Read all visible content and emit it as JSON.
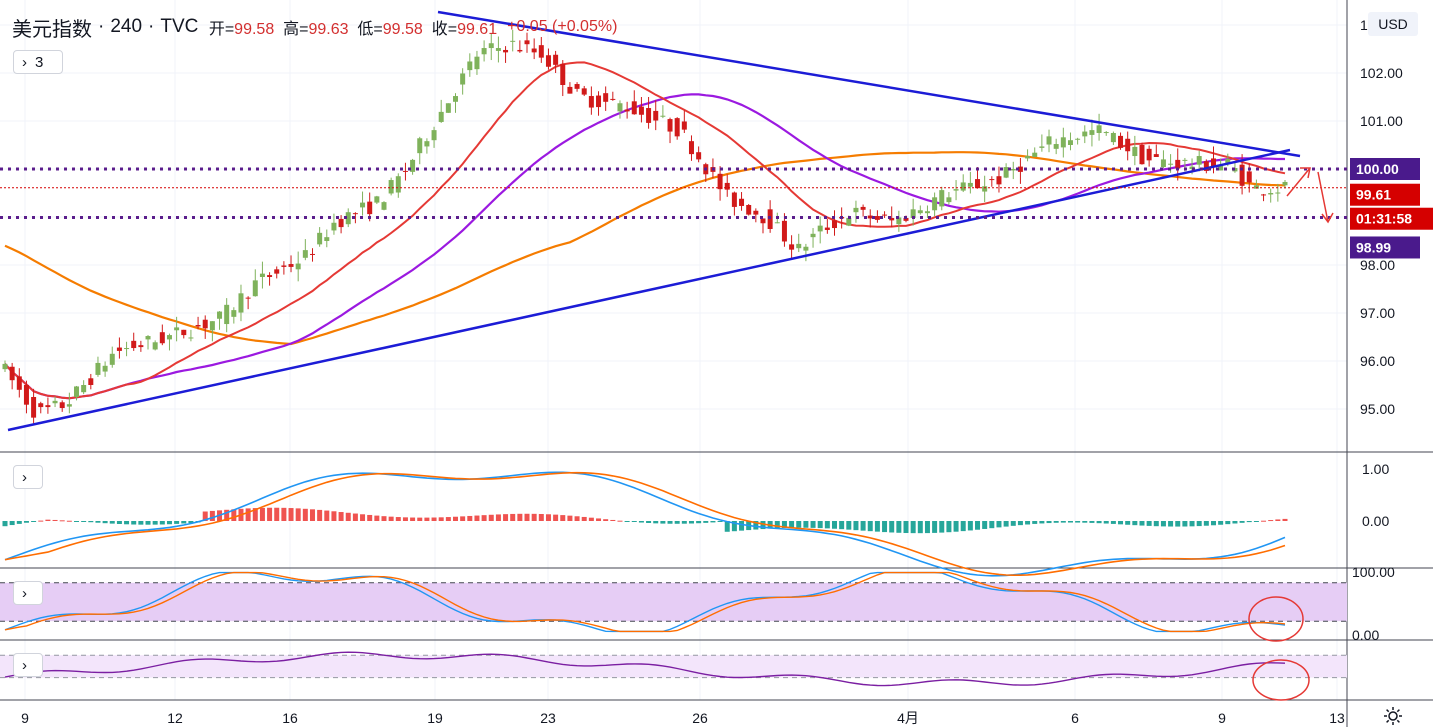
{
  "header": {
    "symbol": "美元指数",
    "interval": "240",
    "source": "TVC",
    "open_label": "开=",
    "open": "99.58",
    "high_label": "高=",
    "high": "99.63",
    "low_label": "低=",
    "low": "99.58",
    "close_label": "收=",
    "close": "99.61",
    "change": "+0.05 (+0.05%)",
    "indicators_toggle": "3"
  },
  "currency_button": "USD",
  "colors": {
    "up": "#7fb25b",
    "down": "#d11a1a",
    "trend": "#1c1cd6",
    "ma_fast": "#9b19e0",
    "ma_mid": "#e53935",
    "ma_slow": "#f57c00",
    "level": "#5b1d8c"
  },
  "chart_data": {
    "type": "candlestick",
    "price_axis": {
      "ticks": [
        "1",
        "102.00",
        "101.00",
        "100.00",
        "99.00",
        "98.00",
        "97.00",
        "96.00",
        "95.00"
      ],
      "range": [
        94.3,
        103.1
      ]
    },
    "price_labels": [
      {
        "text": "100.00",
        "color": "#4a1a8c"
      },
      {
        "text": "99.61",
        "color": "#d50000"
      },
      {
        "text": "01:31:58",
        "color": "#d50000"
      },
      {
        "text": "98.99",
        "color": "#4a1a8c"
      }
    ],
    "horizontal_levels": [
      100.0,
      99.61,
      98.99
    ],
    "time_axis": {
      "ticks": [
        "9",
        "12",
        "16",
        "19",
        "23",
        "26",
        "4月",
        "6",
        "9",
        "13"
      ]
    },
    "candles": [],
    "macd_axis": [
      "1.00",
      "0.00"
    ],
    "stoch_axis": [
      "100.00",
      "0.00"
    ]
  }
}
